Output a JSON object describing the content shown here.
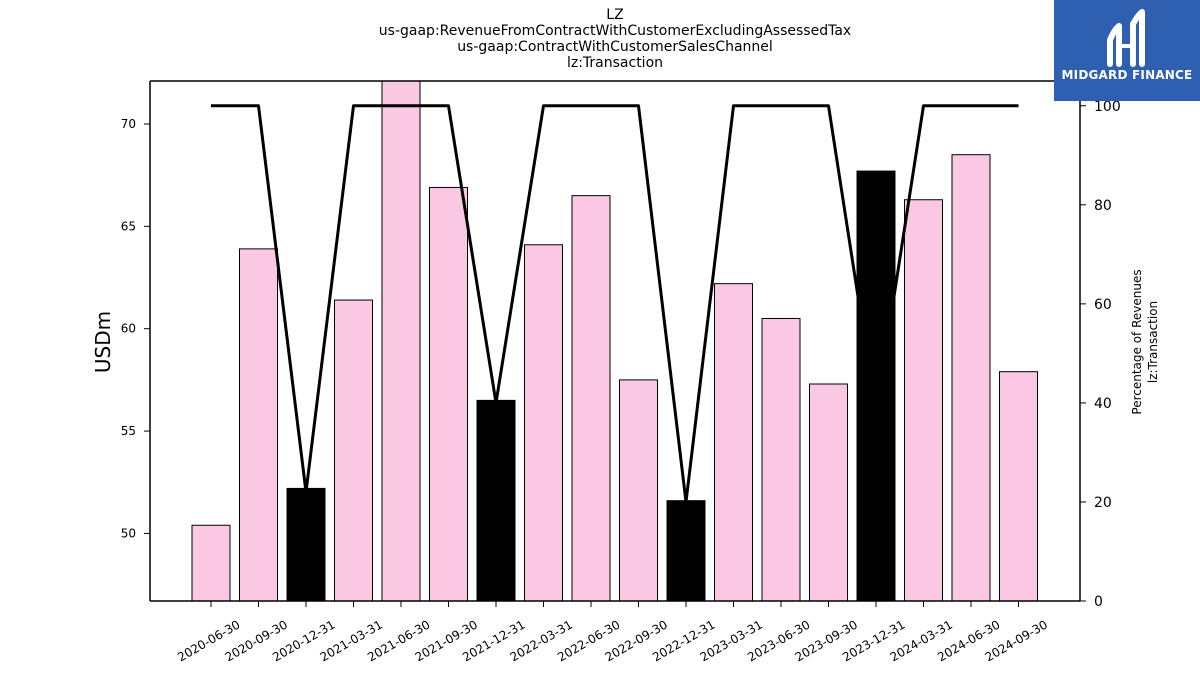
{
  "chart_data": {
    "type": "bar",
    "title_lines": [
      "LZ",
      "us-gaap:RevenueFromContractWithCustomerExcludingAssessedTax",
      "us-gaap:ContractWithCustomerSalesChannel",
      "lz:Transaction"
    ],
    "ylabel": "USDm",
    "y2label_lines": [
      "Percentage of Revenues",
      "lz:Transaction"
    ],
    "categories": [
      "2020-06-30",
      "2020-09-30",
      "2020-12-31",
      "2021-03-31",
      "2021-06-30",
      "2021-09-30",
      "2021-12-31",
      "2022-03-31",
      "2022-06-30",
      "2022-09-30",
      "2022-12-31",
      "2023-03-31",
      "2023-06-30",
      "2023-09-30",
      "2023-12-31",
      "2024-03-31",
      "2024-06-30",
      "2024-09-30"
    ],
    "series": [
      {
        "type": "bar",
        "values": [
          50.4,
          63.9,
          52.2,
          61.4,
          72.2,
          66.9,
          56.5,
          64.1,
          66.5,
          57.5,
          51.6,
          62.2,
          60.5,
          57.3,
          67.7,
          66.3,
          68.5,
          57.9
        ]
      },
      {
        "type": "line",
        "axis": "right",
        "values": [
          100,
          100,
          22,
          100,
          100,
          100,
          40,
          100,
          100,
          100,
          20,
          100,
          100,
          100,
          38,
          100,
          100,
          100
        ]
      }
    ],
    "bar_highlight": [
      false,
      false,
      true,
      false,
      false,
      false,
      true,
      false,
      false,
      false,
      true,
      false,
      false,
      false,
      true,
      false,
      false,
      false
    ],
    "ylim": [
      46.7,
      72.1
    ],
    "y_ticks": [
      50,
      55,
      60,
      65,
      70
    ],
    "y2lim": [
      0,
      105
    ],
    "y2_ticks": [
      0,
      20,
      40,
      60,
      80,
      100
    ],
    "grid": false,
    "colors": {
      "bar": "#fbc8e3",
      "bar_highlight": "#000000",
      "line": "#000000"
    }
  },
  "logo": {
    "text": "MIDGARD FINANCE",
    "icon": "midgard-logo-icon"
  }
}
